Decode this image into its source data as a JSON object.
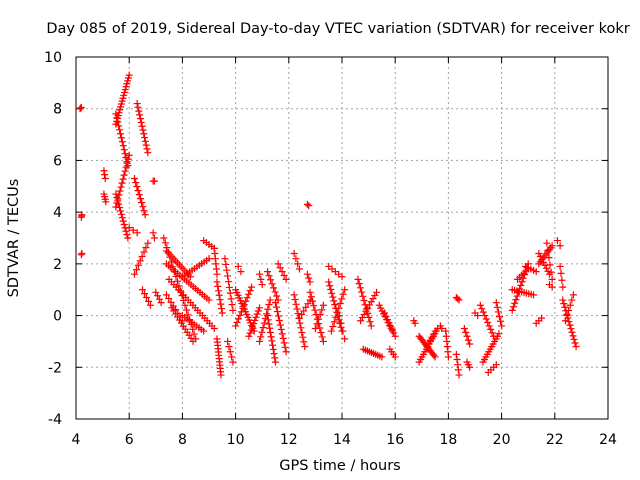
{
  "chart_data": {
    "type": "scatter",
    "title": "Day 085 of 2019, Sidereal Day-to-day VTEC variation (SDTVAR) for receiver kokr",
    "xlabel": "GPS time / hours",
    "ylabel": "SDTVAR / TECUs",
    "xlim": [
      4,
      24
    ],
    "ylim": [
      -4,
      10
    ],
    "x_ticks": [
      "4",
      "6",
      "8",
      "10",
      "12",
      "14",
      "16",
      "18",
      "20",
      "22",
      "24"
    ],
    "y_ticks": [
      "-4",
      "-2",
      "0",
      "2",
      "4",
      "6",
      "8",
      "10"
    ],
    "grid": true,
    "marker": "+",
    "color": "#ff0000",
    "segments": [
      {
        "x0": 4.15,
        "y0": 8.0,
        "x1": 4.2,
        "y1": 8.05,
        "n": 3
      },
      {
        "x0": 4.2,
        "y0": 3.8,
        "x1": 4.22,
        "y1": 3.9,
        "n": 3
      },
      {
        "x0": 4.2,
        "y0": 2.35,
        "x1": 4.22,
        "y1": 2.4,
        "n": 2
      },
      {
        "x0": 5.05,
        "y0": 5.6,
        "x1": 5.1,
        "y1": 5.3,
        "n": 3
      },
      {
        "x0": 5.05,
        "y0": 4.7,
        "x1": 5.12,
        "y1": 4.4,
        "n": 4
      },
      {
        "x0": 5.5,
        "y0": 7.4,
        "x1": 6.0,
        "y1": 9.3,
        "n": 18
      },
      {
        "x0": 5.5,
        "y0": 7.8,
        "x1": 5.95,
        "y1": 5.8,
        "n": 14
      },
      {
        "x0": 5.5,
        "y0": 4.2,
        "x1": 6.0,
        "y1": 6.2,
        "n": 14
      },
      {
        "x0": 5.5,
        "y0": 4.7,
        "x1": 5.95,
        "y1": 3.0,
        "n": 14
      },
      {
        "x0": 6.3,
        "y0": 8.2,
        "x1": 6.7,
        "y1": 6.3,
        "n": 14
      },
      {
        "x0": 6.2,
        "y0": 5.3,
        "x1": 6.6,
        "y1": 3.9,
        "n": 10
      },
      {
        "x0": 6.0,
        "y0": 3.4,
        "x1": 6.3,
        "y1": 3.2,
        "n": 3
      },
      {
        "x0": 6.9,
        "y0": 5.2,
        "x1": 6.95,
        "y1": 5.2,
        "n": 2
      },
      {
        "x0": 6.2,
        "y0": 1.6,
        "x1": 6.7,
        "y1": 2.8,
        "n": 8
      },
      {
        "x0": 6.5,
        "y0": 1.0,
        "x1": 6.8,
        "y1": 0.4,
        "n": 5
      },
      {
        "x0": 6.9,
        "y0": 3.2,
        "x1": 6.95,
        "y1": 3.0,
        "n": 2
      },
      {
        "x0": 7.0,
        "y0": 0.9,
        "x1": 7.2,
        "y1": 0.5,
        "n": 4
      },
      {
        "x0": 7.3,
        "y0": 3.0,
        "x1": 8.5,
        "y1": -0.9,
        "n": 22
      },
      {
        "x0": 7.4,
        "y0": 2.5,
        "x1": 8.3,
        "y1": 1.5,
        "n": 14
      },
      {
        "x0": 7.4,
        "y0": 2.0,
        "x1": 9.0,
        "y1": 0.6,
        "n": 20
      },
      {
        "x0": 7.5,
        "y0": 1.4,
        "x1": 9.2,
        "y1": -0.5,
        "n": 20
      },
      {
        "x0": 7.4,
        "y0": 0.8,
        "x1": 8.0,
        "y1": -0.2,
        "n": 8
      },
      {
        "x0": 7.6,
        "y0": 0.3,
        "x1": 8.4,
        "y1": -1.0,
        "n": 12
      },
      {
        "x0": 8.0,
        "y0": 1.5,
        "x1": 9.0,
        "y1": 2.2,
        "n": 12
      },
      {
        "x0": 8.0,
        "y0": 0.0,
        "x1": 8.8,
        "y1": -0.6,
        "n": 10
      },
      {
        "x0": 8.8,
        "y0": 2.9,
        "x1": 9.2,
        "y1": 2.6,
        "n": 5
      },
      {
        "x0": 9.2,
        "y0": 2.6,
        "x1": 9.3,
        "y1": 1.6,
        "n": 6
      },
      {
        "x0": 9.3,
        "y0": -0.9,
        "x1": 9.45,
        "y1": -2.3,
        "n": 12
      },
      {
        "x0": 9.3,
        "y0": 1.3,
        "x1": 9.5,
        "y1": 0.1,
        "n": 8
      },
      {
        "x0": 9.6,
        "y0": 2.2,
        "x1": 9.9,
        "y1": 0.2,
        "n": 10
      },
      {
        "x0": 9.7,
        "y0": -1.0,
        "x1": 9.9,
        "y1": -1.8,
        "n": 5
      },
      {
        "x0": 10.1,
        "y0": 1.9,
        "x1": 10.2,
        "y1": 1.7,
        "n": 2
      },
      {
        "x0": 10.0,
        "y0": 1.0,
        "x1": 10.7,
        "y1": -0.6,
        "n": 16
      },
      {
        "x0": 10.0,
        "y0": -0.4,
        "x1": 10.6,
        "y1": 1.1,
        "n": 12
      },
      {
        "x0": 10.5,
        "y0": -0.8,
        "x1": 10.9,
        "y1": 0.3,
        "n": 10
      },
      {
        "x0": 10.9,
        "y0": -1.0,
        "x1": 11.3,
        "y1": 0.6,
        "n": 10
      },
      {
        "x0": 10.9,
        "y0": 1.6,
        "x1": 11.0,
        "y1": 1.2,
        "n": 3
      },
      {
        "x0": 11.2,
        "y0": 0.0,
        "x1": 11.5,
        "y1": -1.8,
        "n": 12
      },
      {
        "x0": 11.2,
        "y0": 1.7,
        "x1": 11.6,
        "y1": 0.6,
        "n": 8
      },
      {
        "x0": 11.5,
        "y0": 0.5,
        "x1": 11.9,
        "y1": -1.4,
        "n": 12
      },
      {
        "x0": 11.6,
        "y0": 2.0,
        "x1": 11.9,
        "y1": 1.4,
        "n": 5
      },
      {
        "x0": 12.2,
        "y0": 2.4,
        "x1": 12.4,
        "y1": 1.8,
        "n": 4
      },
      {
        "x0": 12.2,
        "y0": 0.8,
        "x1": 12.6,
        "y1": -1.2,
        "n": 12
      },
      {
        "x0": 12.4,
        "y0": -0.1,
        "x1": 12.8,
        "y1": 0.6,
        "n": 6
      },
      {
        "x0": 12.7,
        "y0": 4.3,
        "x1": 12.75,
        "y1": 4.25,
        "n": 2
      },
      {
        "x0": 12.7,
        "y0": 1.6,
        "x1": 12.8,
        "y1": 1.3,
        "n": 3
      },
      {
        "x0": 12.8,
        "y0": 0.9,
        "x1": 13.3,
        "y1": -1.0,
        "n": 12
      },
      {
        "x0": 13.0,
        "y0": -0.5,
        "x1": 13.3,
        "y1": 0.4,
        "n": 6
      },
      {
        "x0": 13.5,
        "y0": 1.3,
        "x1": 14.0,
        "y1": -0.6,
        "n": 14
      },
      {
        "x0": 13.6,
        "y0": -0.6,
        "x1": 14.1,
        "y1": 1.0,
        "n": 10
      },
      {
        "x0": 13.5,
        "y0": 1.9,
        "x1": 14.0,
        "y1": 1.5,
        "n": 5
      },
      {
        "x0": 13.9,
        "y0": 0.0,
        "x1": 14.1,
        "y1": -0.9,
        "n": 4
      },
      {
        "x0": 14.6,
        "y0": 1.4,
        "x1": 15.1,
        "y1": -0.4,
        "n": 12
      },
      {
        "x0": 14.7,
        "y0": -0.2,
        "x1": 15.3,
        "y1": 0.9,
        "n": 10
      },
      {
        "x0": 14.8,
        "y0": -1.3,
        "x1": 15.5,
        "y1": -1.6,
        "n": 10
      },
      {
        "x0": 15.4,
        "y0": 0.4,
        "x1": 15.9,
        "y1": -0.6,
        "n": 10
      },
      {
        "x0": 15.6,
        "y0": 0.1,
        "x1": 16.0,
        "y1": -0.8,
        "n": 8
      },
      {
        "x0": 15.8,
        "y0": -1.3,
        "x1": 16.0,
        "y1": -1.6,
        "n": 4
      },
      {
        "x0": 16.7,
        "y0": -0.2,
        "x1": 16.75,
        "y1": -0.3,
        "n": 2
      },
      {
        "x0": 16.9,
        "y0": -0.8,
        "x1": 17.5,
        "y1": -1.6,
        "n": 14
      },
      {
        "x0": 16.9,
        "y0": -1.8,
        "x1": 17.6,
        "y1": -0.5,
        "n": 14
      },
      {
        "x0": 17.2,
        "y0": -1.2,
        "x1": 17.5,
        "y1": -0.6,
        "n": 6
      },
      {
        "x0": 17.7,
        "y0": -0.4,
        "x1": 17.75,
        "y1": -0.5,
        "n": 2
      },
      {
        "x0": 17.9,
        "y0": -0.6,
        "x1": 18.0,
        "y1": -1.6,
        "n": 6
      },
      {
        "x0": 18.3,
        "y0": 0.7,
        "x1": 18.4,
        "y1": 0.6,
        "n": 3
      },
      {
        "x0": 18.3,
        "y0": -1.5,
        "x1": 18.4,
        "y1": -2.3,
        "n": 5
      },
      {
        "x0": 18.6,
        "y0": -0.5,
        "x1": 18.8,
        "y1": -1.1,
        "n": 5
      },
      {
        "x0": 18.7,
        "y0": -1.8,
        "x1": 18.8,
        "y1": -2.0,
        "n": 3
      },
      {
        "x0": 19.0,
        "y0": 0.1,
        "x1": 19.1,
        "y1": 0.0,
        "n": 2
      },
      {
        "x0": 19.2,
        "y0": 0.4,
        "x1": 19.7,
        "y1": -0.8,
        "n": 10
      },
      {
        "x0": 19.3,
        "y0": -1.8,
        "x1": 19.9,
        "y1": -0.7,
        "n": 12
      },
      {
        "x0": 19.5,
        "y0": -2.2,
        "x1": 19.8,
        "y1": -1.9,
        "n": 4
      },
      {
        "x0": 19.8,
        "y0": 0.5,
        "x1": 20.0,
        "y1": -0.4,
        "n": 6
      },
      {
        "x0": 20.4,
        "y0": 0.2,
        "x1": 21.0,
        "y1": 2.0,
        "n": 14
      },
      {
        "x0": 20.4,
        "y0": 1.0,
        "x1": 21.2,
        "y1": 0.8,
        "n": 10
      },
      {
        "x0": 20.6,
        "y0": 1.4,
        "x1": 21.0,
        "y1": 1.8,
        "n": 6
      },
      {
        "x0": 20.9,
        "y0": 1.9,
        "x1": 21.3,
        "y1": 1.7,
        "n": 5
      },
      {
        "x0": 21.3,
        "y0": -0.3,
        "x1": 21.5,
        "y1": -0.1,
        "n": 3
      },
      {
        "x0": 21.4,
        "y0": 2.0,
        "x1": 21.9,
        "y1": 2.7,
        "n": 10
      },
      {
        "x0": 21.4,
        "y0": 2.4,
        "x1": 21.8,
        "y1": 1.6,
        "n": 8
      },
      {
        "x0": 21.7,
        "y0": 2.8,
        "x1": 21.9,
        "y1": 1.4,
        "n": 6
      },
      {
        "x0": 21.8,
        "y0": 1.2,
        "x1": 21.9,
        "y1": 1.1,
        "n": 2
      },
      {
        "x0": 22.1,
        "y0": 2.9,
        "x1": 22.2,
        "y1": 2.7,
        "n": 2
      },
      {
        "x0": 22.2,
        "y0": 1.9,
        "x1": 22.3,
        "y1": 1.1,
        "n": 4
      },
      {
        "x0": 22.3,
        "y0": 0.6,
        "x1": 22.8,
        "y1": -1.2,
        "n": 14
      },
      {
        "x0": 22.4,
        "y0": -0.2,
        "x1": 22.7,
        "y1": 0.8,
        "n": 6
      }
    ]
  }
}
